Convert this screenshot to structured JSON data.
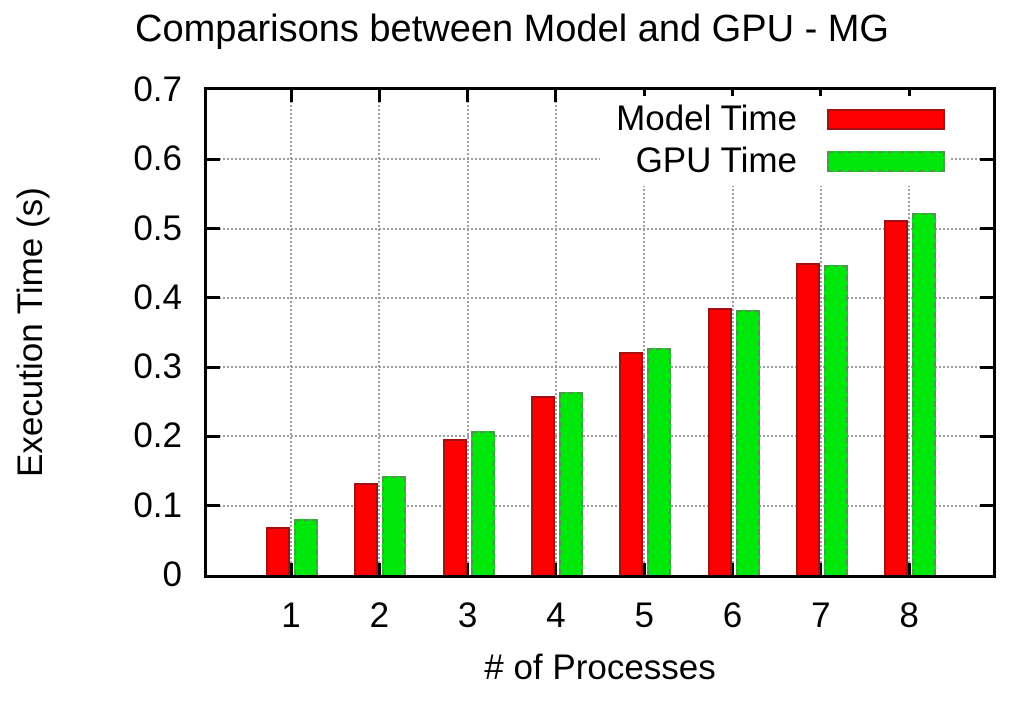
{
  "title": "Comparisons between Model and GPU - MG",
  "chart_data": {
    "type": "bar",
    "title": "Comparisons between Model and GPU - MG",
    "xlabel": "# of Processes",
    "ylabel": "Execution Time (s)",
    "categories": [
      "1",
      "2",
      "3",
      "4",
      "5",
      "6",
      "7",
      "8"
    ],
    "series": [
      {
        "name": "Model Time",
        "color": "#ff0000",
        "border_style": "solid",
        "values": [
          0.07,
          0.133,
          0.196,
          0.259,
          0.322,
          0.385,
          0.45,
          0.513
        ]
      },
      {
        "name": "GPU Time",
        "color": "#00e80b",
        "border_style": "dashed",
        "values": [
          0.081,
          0.143,
          0.208,
          0.264,
          0.327,
          0.383,
          0.447,
          0.523
        ]
      }
    ],
    "ylim": [
      0,
      0.7
    ],
    "ytick_labels": [
      "0",
      "0.1",
      "0.2",
      "0.3",
      "0.4",
      "0.5",
      "0.6",
      "0.7"
    ],
    "grid": true,
    "grid_color": "#9e9e9e",
    "axis_color": "#000000",
    "legend_position": "top-right-inside"
  }
}
